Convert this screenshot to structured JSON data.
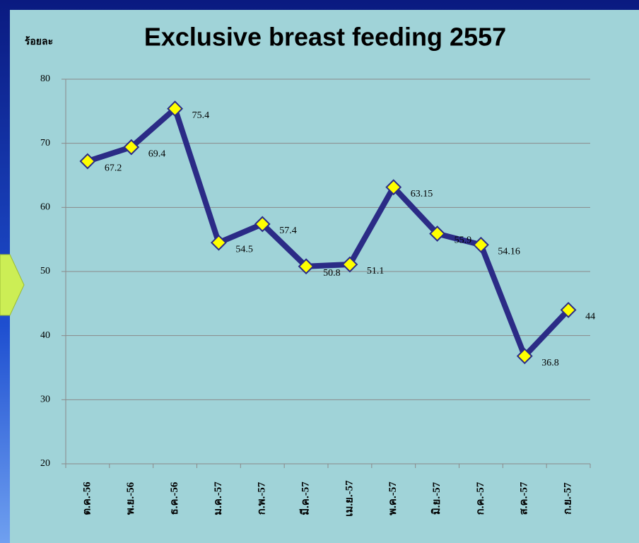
{
  "chart_data": {
    "type": "line",
    "title": "Exclusive breast feeding 2557",
    "ylabel": "ร้อยละ",
    "categories": [
      "ต.ค.-56",
      "พ.ย.-56",
      "ธ.ค.-56",
      "ม.ค.-57",
      "ก.พ.-57",
      "มี.ค.-57",
      "เม.ย.-57",
      "พ.ค.-57",
      "มิ.ย.-57",
      "ก.ค.-57",
      "ส.ค.-57",
      "ก.ย.-57"
    ],
    "values": [
      67.2,
      69.4,
      75.4,
      54.5,
      57.4,
      50.8,
      51.1,
      63.15,
      55.9,
      54.16,
      36.8,
      44
    ],
    "color": "#2b2b86",
    "marker_color": "#ffff00",
    "ylim": [
      20,
      80
    ],
    "yticks": [
      20,
      30,
      40,
      50,
      60,
      70,
      80
    ],
    "grid": true
  }
}
